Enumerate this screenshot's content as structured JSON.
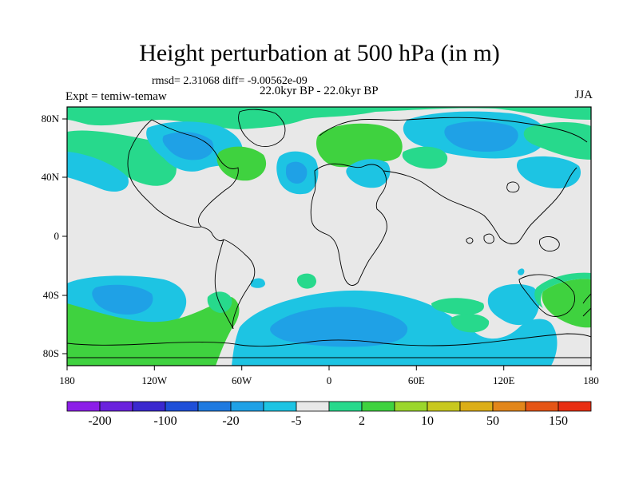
{
  "figure": {
    "title": "Height perturbation at 500 hPa (in m)",
    "stats": "rmsd= 2.31068 diff= -9.00562e-09",
    "experiment": "Expt = temiw-temaw",
    "period": "22.0kyr BP - 22.0kyr BP",
    "season": "JJA"
  },
  "axes": {
    "lon_ticks": [
      "180",
      "120W",
      "60W",
      "0",
      "60E",
      "120E",
      "180"
    ],
    "lat_ticks": [
      "80N",
      "40N",
      "0",
      "40S",
      "80S"
    ]
  },
  "colorbar": {
    "labels": [
      "-200",
      "-100",
      "-20",
      "-5",
      "2",
      "10",
      "50",
      "150"
    ],
    "colors": [
      "#8c1ee8",
      "#6a22dd",
      "#3a28cf",
      "#1e4fd8",
      "#1f7ae0",
      "#1fa1e6",
      "#1dc4e3",
      "#e8e8e8",
      "#27d98c",
      "#3fd23f",
      "#9bd62c",
      "#c8c81e",
      "#dcae17",
      "#e2861a",
      "#e55516",
      "#e82e12"
    ]
  },
  "map_colors": {
    "background": "#e8e8e8",
    "light_blue": "#1dc4e3",
    "mid_blue": "#1fa1e6",
    "light_green": "#27d98c",
    "green": "#3fd23f"
  }
}
